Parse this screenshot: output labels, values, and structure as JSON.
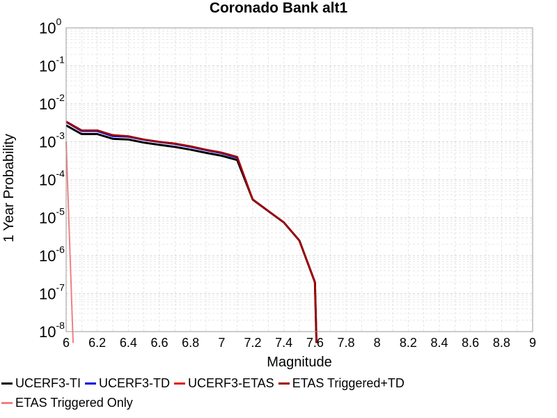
{
  "chart_data": {
    "type": "line",
    "title": "Coronado Bank alt1",
    "xlabel": "Magnitude",
    "ylabel": "1 Year Probability",
    "xlim": [
      6,
      9
    ],
    "ylim_exp": [
      -8,
      0
    ],
    "y_scale": "log",
    "grid": true,
    "legend_position": "bottom",
    "x_ticks": [
      "6",
      "6.2",
      "6.4",
      "6.6",
      "6.8",
      "7",
      "7.2",
      "7.4",
      "7.6",
      "7.8",
      "8",
      "8.2",
      "8.4",
      "8.6",
      "8.8",
      "9"
    ],
    "y_tick_base": "10",
    "y_tick_exponents": [
      "0",
      "-1",
      "-2",
      "-3",
      "-4",
      "-5",
      "-6",
      "-7",
      "-8"
    ],
    "series": [
      {
        "name": "UCERF3-TI",
        "color": "#000000",
        "x": [
          6.0,
          6.1,
          6.2,
          6.3,
          6.4,
          6.5,
          6.6,
          6.7,
          6.8,
          6.9,
          7.0,
          7.1,
          7.2,
          7.3,
          7.4,
          7.5,
          7.6,
          7.61
        ],
        "y": [
          0.0027,
          0.0016,
          0.0016,
          0.0012,
          0.00115,
          0.00095,
          0.00083,
          0.00073,
          0.00062,
          0.00051,
          0.00043,
          0.00033,
          3e-05,
          1.5e-05,
          7.5e-06,
          2.5e-06,
          2e-07,
          5e-09
        ]
      },
      {
        "name": "UCERF3-TD",
        "color": "#0000e0",
        "x": [
          6.0,
          6.1,
          6.2,
          6.3,
          6.4,
          6.5,
          6.6,
          6.7,
          6.8,
          6.9,
          7.0,
          7.1,
          7.2,
          7.3,
          7.4,
          7.5,
          7.6,
          7.61
        ],
        "y": [
          0.0033,
          0.0019,
          0.0019,
          0.0014,
          0.00135,
          0.00112,
          0.00098,
          0.00087,
          0.00073,
          0.0006,
          0.0005,
          0.00038,
          3e-05,
          1.5e-05,
          7.5e-06,
          2.5e-06,
          2e-07,
          5e-09
        ]
      },
      {
        "name": "UCERF3-ETAS",
        "color": "#e01010",
        "x": [
          6.0,
          6.1,
          6.2,
          6.3,
          6.4,
          6.5,
          6.6,
          6.7,
          6.8,
          6.9,
          7.0,
          7.1,
          7.2,
          7.3,
          7.4,
          7.5,
          7.6,
          7.61
        ],
        "y": [
          0.0034,
          0.002,
          0.002,
          0.0015,
          0.0014,
          0.00115,
          0.001,
          0.0009,
          0.00076,
          0.00062,
          0.00052,
          0.0004,
          3e-05,
          1.5e-05,
          7.5e-06,
          2.5e-06,
          2e-07,
          5e-09
        ]
      },
      {
        "name": "ETAS Triggered+TD",
        "color": "#a00000",
        "x": [
          6.0,
          6.1,
          6.2,
          6.3,
          6.4,
          6.5,
          6.6,
          6.7,
          6.8,
          6.9,
          7.0,
          7.1,
          7.2,
          7.3,
          7.4,
          7.5,
          7.6,
          7.61
        ],
        "y": [
          0.0034,
          0.002,
          0.002,
          0.0015,
          0.0014,
          0.00115,
          0.001,
          0.0009,
          0.00076,
          0.00062,
          0.00052,
          0.0004,
          3e-05,
          1.5e-05,
          7.5e-06,
          2.5e-06,
          2e-07,
          5e-09
        ]
      },
      {
        "name": "ETAS Triggered Only",
        "color": "#f08080",
        "x": [
          6.0,
          6.045
        ],
        "y": [
          0.001,
          5e-09
        ]
      }
    ]
  }
}
